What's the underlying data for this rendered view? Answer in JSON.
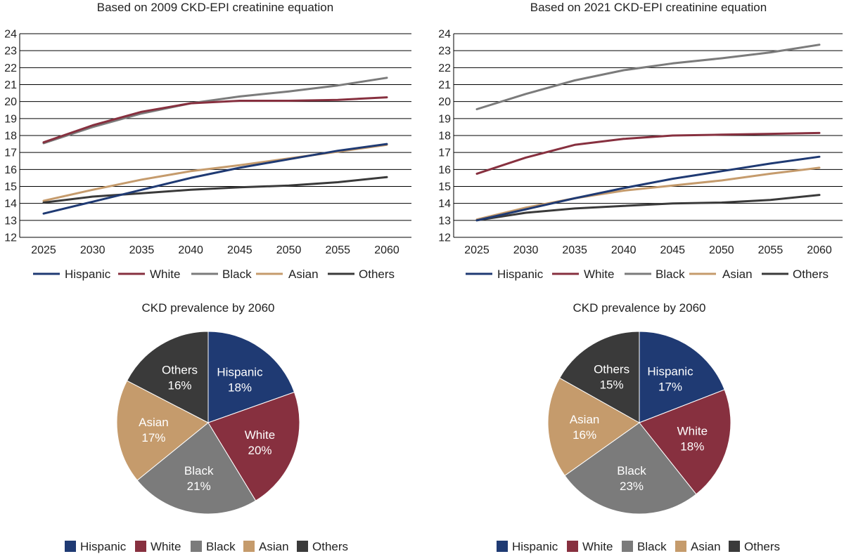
{
  "colors": {
    "Hispanic": "#1f3a73",
    "White": "#87303f",
    "Black": "#7b7b7b",
    "Asian": "#c59b6c",
    "Others": "#3a3a3a"
  },
  "chart_data": [
    {
      "type": "line",
      "title": "Based on 2009 CKD-EPI creatinine equation",
      "x": [
        2025,
        2030,
        2035,
        2040,
        2045,
        2050,
        2055,
        2060
      ],
      "ylim": [
        12,
        24
      ],
      "yticks": [
        12,
        13,
        14,
        15,
        16,
        17,
        18,
        19,
        20,
        21,
        22,
        23,
        24
      ],
      "grid": true,
      "legend_position": "bottom",
      "series": [
        {
          "name": "Hispanic",
          "values": [
            13.4,
            14.1,
            14.8,
            15.5,
            16.1,
            16.6,
            17.1,
            17.5
          ]
        },
        {
          "name": "White",
          "values": [
            17.6,
            18.6,
            19.4,
            19.9,
            20.05,
            20.05,
            20.1,
            20.25
          ]
        },
        {
          "name": "Black",
          "values": [
            17.55,
            18.5,
            19.3,
            19.9,
            20.3,
            20.6,
            20.95,
            21.4
          ]
        },
        {
          "name": "Asian",
          "values": [
            14.15,
            14.8,
            15.4,
            15.9,
            16.25,
            16.65,
            17.05,
            17.45
          ]
        },
        {
          "name": "Others",
          "values": [
            14.05,
            14.4,
            14.6,
            14.8,
            14.95,
            15.05,
            15.25,
            15.55
          ]
        }
      ]
    },
    {
      "type": "line",
      "title": "Based on 2021 CKD-EPI creatinine equation",
      "x": [
        2025,
        2030,
        2035,
        2040,
        2045,
        2050,
        2055,
        2060
      ],
      "ylim": [
        12,
        24
      ],
      "yticks": [
        12,
        13,
        14,
        15,
        16,
        17,
        18,
        19,
        20,
        21,
        22,
        23,
        24
      ],
      "grid": true,
      "legend_position": "bottom",
      "series": [
        {
          "name": "Hispanic",
          "values": [
            13.0,
            13.65,
            14.3,
            14.9,
            15.45,
            15.9,
            16.35,
            16.75
          ]
        },
        {
          "name": "White",
          "values": [
            15.75,
            16.7,
            17.45,
            17.8,
            18.0,
            18.05,
            18.1,
            18.15
          ]
        },
        {
          "name": "Black",
          "values": [
            19.55,
            20.45,
            21.25,
            21.85,
            22.25,
            22.55,
            22.9,
            23.35
          ]
        },
        {
          "name": "Asian",
          "values": [
            13.05,
            13.75,
            14.3,
            14.75,
            15.05,
            15.35,
            15.75,
            16.1
          ]
        },
        {
          "name": "Others",
          "values": [
            13.0,
            13.45,
            13.7,
            13.85,
            14.0,
            14.05,
            14.2,
            14.5
          ]
        }
      ]
    },
    {
      "type": "pie",
      "title": "CKD prevalence by 2060",
      "legend_position": "bottom",
      "slices": [
        {
          "name": "Hispanic",
          "value": 18,
          "label": "18%"
        },
        {
          "name": "White",
          "value": 20,
          "label": "20%"
        },
        {
          "name": "Black",
          "value": 21,
          "label": "21%"
        },
        {
          "name": "Asian",
          "value": 17,
          "label": "17%"
        },
        {
          "name": "Others",
          "value": 16,
          "label": "16%"
        }
      ]
    },
    {
      "type": "pie",
      "title": "CKD prevalence by 2060",
      "legend_position": "bottom",
      "slices": [
        {
          "name": "Hispanic",
          "value": 17,
          "label": "17%"
        },
        {
          "name": "White",
          "value": 18,
          "label": "18%"
        },
        {
          "name": "Black",
          "value": 23,
          "label": "23%"
        },
        {
          "name": "Asian",
          "value": 16,
          "label": "16%"
        },
        {
          "name": "Others",
          "value": 15,
          "label": "15%"
        }
      ]
    }
  ]
}
